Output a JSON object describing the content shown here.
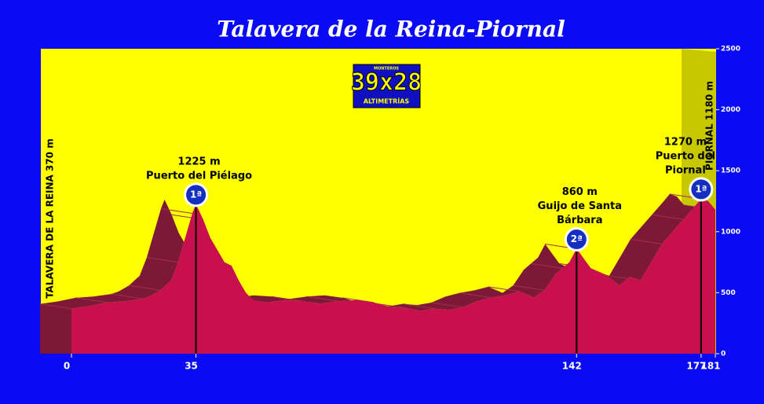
{
  "chart_data": {
    "type": "area",
    "title": "Talavera de la Reina-Piornal",
    "logo": {
      "top": "MONTEROS",
      "main": "39x28",
      "bottom": "ALTIMETRÍAS"
    },
    "start_label": "TALAVERA DE LA REINA 370 m",
    "end_label": "PIORNAL 1180 m",
    "x": [
      0,
      5,
      10,
      15,
      20,
      22,
      25,
      28,
      30,
      32,
      34,
      35,
      37,
      39,
      41,
      43,
      45,
      47,
      49,
      51,
      55,
      60,
      65,
      70,
      75,
      80,
      85,
      90,
      95,
      98,
      102,
      106,
      110,
      114,
      118,
      122,
      126,
      130,
      133,
      136,
      138,
      140,
      142,
      144,
      146,
      150,
      154,
      157,
      160,
      163,
      166,
      169,
      172,
      175,
      177,
      179,
      181
    ],
    "values": [
      370,
      390,
      420,
      430,
      450,
      470,
      520,
      600,
      750,
      950,
      1150,
      1225,
      1100,
      950,
      850,
      750,
      720,
      600,
      500,
      440,
      420,
      440,
      430,
      410,
      430,
      440,
      420,
      380,
      370,
      350,
      370,
      360,
      380,
      430,
      460,
      480,
      510,
      460,
      520,
      650,
      700,
      750,
      860,
      780,
      700,
      650,
      560,
      630,
      600,
      750,
      900,
      1000,
      1100,
      1200,
      1270,
      1250,
      1180
    ],
    "color": "#c8104f",
    "depth_color": "#7d1838",
    "xlim": [
      0,
      181
    ],
    "ylim": [
      0,
      2500
    ],
    "xticks": [
      0,
      35,
      142,
      177,
      181
    ],
    "yticks": [
      0,
      500,
      1000,
      1500,
      2000,
      2500
    ],
    "annotations": [
      {
        "x": 35,
        "elevation": 1225,
        "lines": [
          "1225 m",
          "Puerto del Piélago"
        ],
        "category": "1ª"
      },
      {
        "x": 142,
        "elevation": 860,
        "lines": [
          "860 m",
          "Guijo de Santa",
          "Bárbara"
        ],
        "category": "2ª"
      },
      {
        "x": 177,
        "elevation": 1270,
        "lines": [
          "1270 m",
          "Puerto del",
          "Piornal"
        ],
        "category": "1ª"
      }
    ]
  }
}
